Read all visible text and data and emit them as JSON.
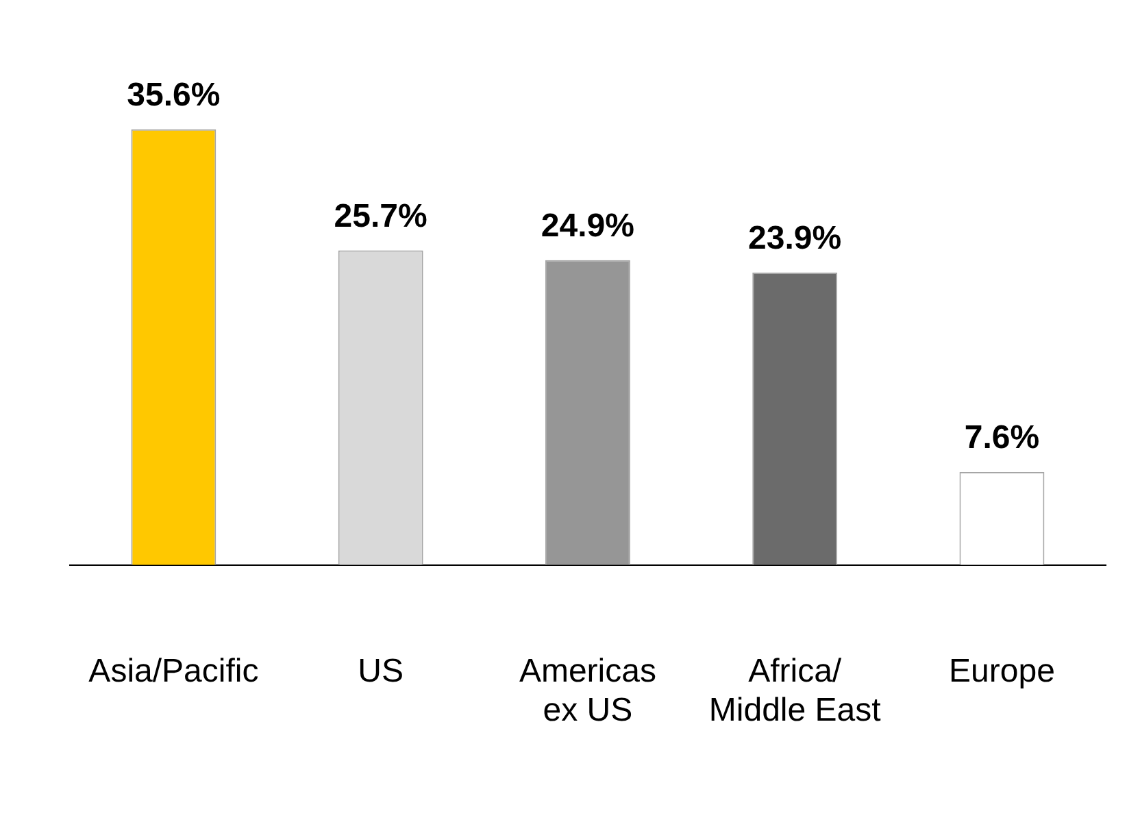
{
  "chart_data": {
    "type": "bar",
    "categories": [
      "Asia/Pacific",
      "US",
      "Americas\nex US",
      "Africa/\nMiddle East",
      "Europe"
    ],
    "values": [
      35.6,
      25.7,
      24.9,
      23.9,
      7.6
    ],
    "colors": [
      "#ffc800",
      "#d9d9d9",
      "#969696",
      "#6b6b6b",
      "#ffffff"
    ],
    "value_labels": [
      "35.6%",
      "25.7%",
      "24.9%",
      "23.9%",
      "7.6%"
    ],
    "grid": false,
    "legend": false
  }
}
